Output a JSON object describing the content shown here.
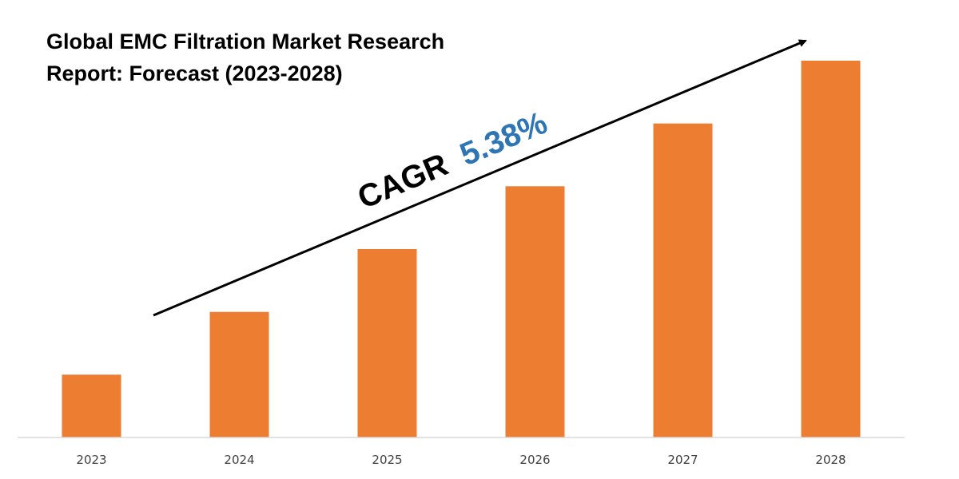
{
  "chart_data": {
    "type": "bar",
    "title_line1": "Global EMC Filtration Market Research",
    "title_line2": "Report: Forecast (2023-2028)",
    "categories": [
      "2023",
      "2024",
      "2025",
      "2026",
      "2027",
      "2028"
    ],
    "values": [
      1.0,
      2.0,
      3.0,
      4.0,
      5.0,
      6.0
    ],
    "ylim": [
      0,
      6.0
    ],
    "xlabel": "",
    "ylabel": "",
    "grid": false,
    "legend": "none",
    "annotation": {
      "prefix": "CAGR",
      "value": "5.38%"
    },
    "colors": {
      "bar": "#ED7D31",
      "cagr_value": "#2E75B6",
      "axis": "#D9D9D9",
      "arrow": "#000000"
    }
  }
}
